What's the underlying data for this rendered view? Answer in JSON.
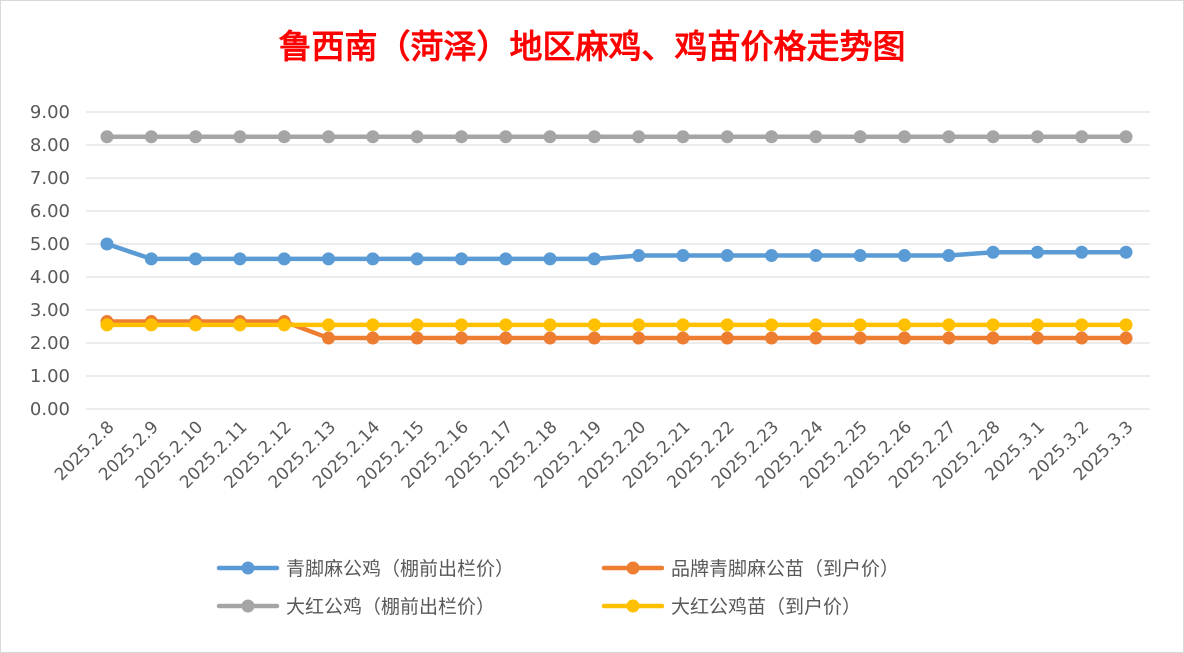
{
  "chart_data": {
    "type": "line",
    "title": "鲁西南（菏泽）地区麻鸡、鸡苗价格走势图",
    "xlabel": "",
    "ylabel": "",
    "ylim": [
      0,
      9
    ],
    "yticks": [
      "0.00",
      "1.00",
      "2.00",
      "3.00",
      "4.00",
      "5.00",
      "6.00",
      "7.00",
      "8.00",
      "9.00"
    ],
    "grid": true,
    "legend_position": "bottom",
    "categories": [
      "2025.2.8",
      "2025.2.9",
      "2025.2.10",
      "2025.2.11",
      "2025.2.12",
      "2025.2.13",
      "2025.2.14",
      "2025.2.15",
      "2025.2.16",
      "2025.2.17",
      "2025.2.18",
      "2025.2.19",
      "2025.2.20",
      "2025.2.21",
      "2025.2.22",
      "2025.2.23",
      "2025.2.24",
      "2025.2.25",
      "2025.2.26",
      "2025.2.27",
      "2025.2.28",
      "2025.3.1",
      "2025.3.2",
      "2025.3.3"
    ],
    "series": [
      {
        "name": "青脚麻公鸡（棚前出栏价）",
        "color": "#5b9bd5",
        "values": [
          5.0,
          4.55,
          4.55,
          4.55,
          4.55,
          4.55,
          4.55,
          4.55,
          4.55,
          4.55,
          4.55,
          4.55,
          4.65,
          4.65,
          4.65,
          4.65,
          4.65,
          4.65,
          4.65,
          4.65,
          4.75,
          4.75,
          4.75,
          4.75
        ]
      },
      {
        "name": "品牌青脚麻公苗（到户价）",
        "color": "#ed7d31",
        "values": [
          2.65,
          2.65,
          2.65,
          2.65,
          2.65,
          2.15,
          2.15,
          2.15,
          2.15,
          2.15,
          2.15,
          2.15,
          2.15,
          2.15,
          2.15,
          2.15,
          2.15,
          2.15,
          2.15,
          2.15,
          2.15,
          2.15,
          2.15,
          2.15
        ]
      },
      {
        "name": "大红公鸡（棚前出栏价）",
        "color": "#a5a5a5",
        "values": [
          8.25,
          8.25,
          8.25,
          8.25,
          8.25,
          8.25,
          8.25,
          8.25,
          8.25,
          8.25,
          8.25,
          8.25,
          8.25,
          8.25,
          8.25,
          8.25,
          8.25,
          8.25,
          8.25,
          8.25,
          8.25,
          8.25,
          8.25,
          8.25
        ]
      },
      {
        "name": "大红公鸡苗（到户价）",
        "color": "#ffc000",
        "values": [
          2.55,
          2.55,
          2.55,
          2.55,
          2.55,
          2.55,
          2.55,
          2.55,
          2.55,
          2.55,
          2.55,
          2.55,
          2.55,
          2.55,
          2.55,
          2.55,
          2.55,
          2.55,
          2.55,
          2.55,
          2.55,
          2.55,
          2.55,
          2.55
        ]
      }
    ],
    "series_draw_order": [
      2,
      0,
      1,
      3
    ]
  }
}
